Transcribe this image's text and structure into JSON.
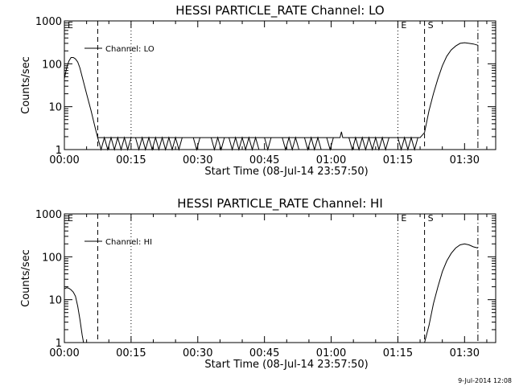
{
  "chart_data": [
    {
      "type": "line",
      "title": "HESSI PARTICLE_RATE Channel: LO",
      "xlabel": "Start Time (08-Jul-14 23:57:50)",
      "ylabel": "Counts/sec",
      "yscale": "log",
      "ylim": [
        1,
        1000
      ],
      "xlim_min": [
        0,
        97
      ],
      "x_tick_labels": [
        "00:00",
        "00:15",
        "00:30",
        "00:45",
        "01:00",
        "01:15",
        "01:30"
      ],
      "y_tick_labels": [
        "1",
        "10",
        "100",
        "1000"
      ],
      "legend": "Channel: LO",
      "markers": [
        {
          "label": "E",
          "x": 0,
          "style": "dashed"
        },
        {
          "label": "",
          "x": 7.5,
          "style": "dashed"
        },
        {
          "label": "",
          "x": 15,
          "style": "dotted"
        },
        {
          "label": "E",
          "x": 75,
          "style": "dotted"
        },
        {
          "label": "S",
          "x": 81,
          "style": "dashed"
        },
        {
          "label": "",
          "x": 93,
          "style": "dashdot"
        }
      ],
      "series": [
        {
          "x": [
            0,
            0.5,
            1,
            1.5,
            2,
            2.5,
            3,
            3.5,
            4,
            5,
            6,
            7,
            7.5,
            8,
            15,
            20,
            30,
            40,
            50,
            60,
            62,
            62.3,
            62.6,
            70,
            75,
            79,
            80,
            81,
            82,
            83,
            84,
            85,
            86,
            87,
            88,
            89,
            90,
            91,
            92,
            93
          ],
          "values": [
            45,
            80,
            115,
            140,
            140,
            130,
            110,
            80,
            50,
            20,
            8,
            3,
            1.9,
            1.9,
            1.9,
            1.9,
            1.9,
            1.9,
            1.9,
            1.9,
            1.9,
            2.6,
            1.9,
            1.9,
            1.9,
            1.9,
            1.9,
            2.5,
            8,
            20,
            45,
            90,
            150,
            210,
            260,
            300,
            310,
            300,
            290,
            270
          ],
          "noise": [
            [
              7.5,
              15
            ],
            [
              16,
              27
            ],
            [
              29,
              31
            ],
            [
              33,
              36
            ],
            [
              37,
              44
            ],
            [
              45,
              47
            ],
            [
              49,
              53
            ],
            [
              54,
              58
            ],
            [
              59,
              61
            ],
            [
              64,
              73
            ],
            [
              75,
              80
            ]
          ]
        }
      ]
    },
    {
      "type": "line",
      "title": "HESSI PARTICLE_RATE Channel: HI",
      "xlabel": "Start Time (08-Jul-14 23:57:50)",
      "ylabel": "Counts/sec",
      "yscale": "log",
      "ylim": [
        1,
        1000
      ],
      "xlim_min": [
        0,
        97
      ],
      "x_tick_labels": [
        "00:00",
        "00:15",
        "00:30",
        "00:45",
        "01:00",
        "01:15",
        "01:30"
      ],
      "y_tick_labels": [
        "1",
        "10",
        "100",
        "1000"
      ],
      "legend": "Channel: HI",
      "markers": [
        {
          "label": "E",
          "x": 0,
          "style": "dashed"
        },
        {
          "label": "",
          "x": 7.5,
          "style": "dashed"
        },
        {
          "label": "",
          "x": 15,
          "style": "dotted"
        },
        {
          "label": "E",
          "x": 75,
          "style": "dotted"
        },
        {
          "label": "S",
          "x": 81,
          "style": "dashed"
        },
        {
          "label": "",
          "x": 93,
          "style": "dashdot"
        }
      ],
      "series": [
        {
          "x": [
            0,
            0.5,
            1,
            1.5,
            2,
            2.5,
            3,
            3.5,
            4,
            4.3
          ],
          "values": [
            18,
            19,
            18.5,
            17,
            15,
            12,
            7,
            3.5,
            1.5,
            1
          ],
          "x2": [
            81,
            82,
            83,
            84,
            85,
            86,
            87,
            88,
            89,
            90,
            91,
            92,
            93
          ],
          "values2": [
            1,
            2.5,
            8,
            20,
            45,
            80,
            120,
            160,
            190,
            200,
            190,
            170,
            160
          ]
        }
      ]
    }
  ],
  "timestamp": "9-Jul-2014 12:08"
}
